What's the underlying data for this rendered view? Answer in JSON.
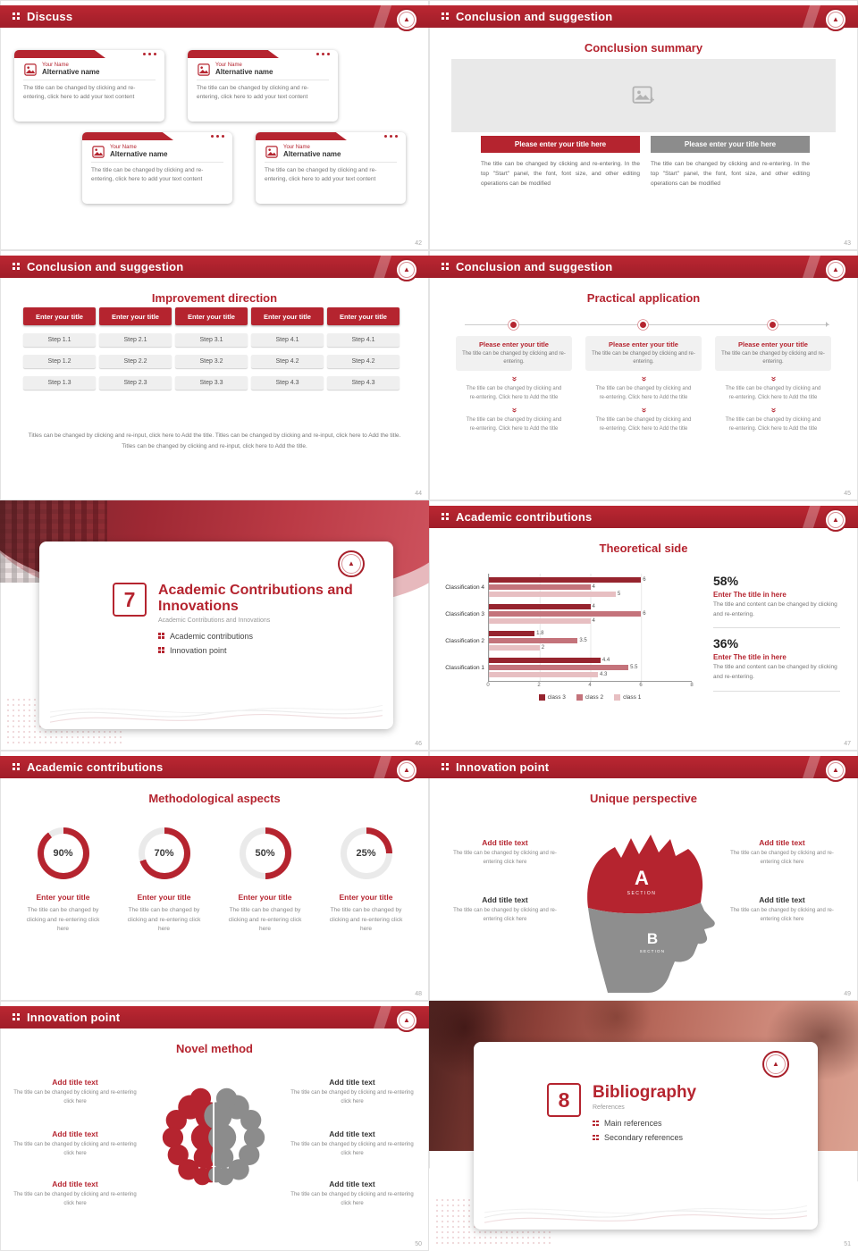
{
  "global": {
    "accent": "#b5242f",
    "accent_dark": "#9e1f2a",
    "gray_button": "#8c8c8c",
    "placeholder_gray": "#e9e9e9"
  },
  "icons": {
    "header_icon": "double-colon-dots-icon",
    "logo": "university-seal-logo",
    "card_icon": "image-icon",
    "placeholder_icon": "image-placeholder-icon",
    "chevron": "double-chevron-down-icon"
  },
  "slides": {
    "s42": {
      "header": "Discuss",
      "page": "42",
      "cards": [
        {
          "name": "Your Name",
          "alt": "Alternative name",
          "body": "The title can be changed by clicking and re-entering, click here to add your text content"
        },
        {
          "name": "Your Name",
          "alt": "Alternative name",
          "body": "The title can be changed by clicking and re-entering, click here to add your text content"
        },
        {
          "name": "Your Name",
          "alt": "Alternative name",
          "body": "The title can be changed by clicking and re-entering, click here to add your text content"
        },
        {
          "name": "Your Name",
          "alt": "Alternative name",
          "body": "The title can be changed by clicking and re-entering, click here to add your text content"
        }
      ]
    },
    "s43": {
      "header": "Conclusion and suggestion",
      "page": "43",
      "title": "Conclusion summary",
      "columns": [
        {
          "button": "Please enter your title here",
          "body": "The title can be changed by clicking and re-entering. In the top \"Start\" panel, the font, font size, and other editing operations can be modified"
        },
        {
          "button": "Please enter your title here",
          "body": "The title can be changed by clicking and re-entering. In the top \"Start\" panel, the font, font size, and other editing operations can be modified"
        }
      ]
    },
    "s44": {
      "header": "Conclusion and suggestion",
      "page": "44",
      "title": "Improvement direction",
      "columns": [
        {
          "button": "Enter your title",
          "steps": [
            "Step 1.1",
            "Step 1.2",
            "Step 1.3"
          ]
        },
        {
          "button": "Enter your title",
          "steps": [
            "Step 2.1",
            "Step 2.2",
            "Step 2.3"
          ]
        },
        {
          "button": "Enter your title",
          "steps": [
            "Step 3.1",
            "Step 3.2",
            "Step 3.3"
          ]
        },
        {
          "button": "Enter your title",
          "steps": [
            "Step 4.1",
            "Step 4.2",
            "Step 4.3"
          ]
        },
        {
          "button": "Enter your title",
          "steps": [
            "Step 4.1",
            "Step 4.2",
            "Step 4.3"
          ]
        }
      ],
      "footer": "Titles can be changed by clicking and re-input, click here to Add the title. Titles can be changed by clicking and re-input, click here to Add the title. Titles can be changed by clicking and re-input, click here to Add the title."
    },
    "s45": {
      "header": "Conclusion and suggestion",
      "page": "45",
      "title": "Practical application",
      "columns": [
        {
          "title": "Please enter your title",
          "subtitle": "The title can be changed by clicking and re-entering.",
          "mid": "The title can be changed by clicking and re-entering. Click here to Add the title",
          "bottom": "The title can be changed by clicking and re-entering. Click here to Add the title"
        },
        {
          "title": "Please enter your title",
          "subtitle": "The title can be changed by clicking and re-entering.",
          "mid": "The title can be changed by clicking and re-entering. Click here to Add the title",
          "bottom": "The title can be changed by clicking and re-entering. Click here to Add the title"
        },
        {
          "title": "Please enter your title",
          "subtitle": "The title can be changed by clicking and re-entering.",
          "mid": "The title can be changed by clicking and re-entering. Click here to Add the title",
          "bottom": "The title can be changed by clicking and re-entering. Click here to Add the title"
        }
      ]
    },
    "s46": {
      "page": "46",
      "number": "7",
      "title": "Academic Contributions and Innovations",
      "subtitle": "Academic Contributions and Innovations",
      "bullets": [
        "Academic contributions",
        "Innovation point"
      ]
    },
    "s47": {
      "header": "Academic contributions",
      "page": "47",
      "title": "Theoretical side",
      "stats": [
        {
          "pct": "58%",
          "title": "Enter The title in here",
          "body": "The title and content can be changed by clicking and re-entering."
        },
        {
          "pct": "36%",
          "title": "Enter The title in here",
          "body": "The title and content can be changed by clicking and re-entering."
        }
      ]
    },
    "s48": {
      "header": "Academic contributions",
      "page": "48",
      "title": "Methodological aspects",
      "donuts": [
        {
          "value": 90,
          "label": "90%",
          "title": "Enter your title",
          "body": "The title can be changed by clicking and re-entering click here"
        },
        {
          "value": 70,
          "label": "70%",
          "title": "Enter your title",
          "body": "The title can be changed by clicking and re-entering click here"
        },
        {
          "value": 50,
          "label": "50%",
          "title": "Enter your title",
          "body": "The title can be changed by clicking and re-entering click here"
        },
        {
          "value": 25,
          "label": "25%",
          "title": "Enter your title",
          "body": "The title can be changed by clicking and re-entering click here"
        }
      ]
    },
    "s49": {
      "header": "Innovation point",
      "page": "49",
      "title": "Unique perspective",
      "sectionA": "A",
      "sectionB": "B",
      "sectionLabel": "SECTION",
      "items": [
        {
          "title": "Add title text",
          "body": "The title can be changed by clicking and re-entering click here"
        },
        {
          "title": "Add title text",
          "body": "The title can be changed by clicking and re-entering click here"
        },
        {
          "title": "Add title text",
          "body": "The title can be changed by clicking and re-entering click here"
        },
        {
          "title": "Add title text",
          "body": "The title can be changed by clicking and re-entering click here"
        }
      ]
    },
    "s50": {
      "header": "Innovation point",
      "page": "50",
      "title": "Novel method",
      "items": [
        {
          "title": "Add title text",
          "body": "The title can be changed by clicking and re-entering click here"
        },
        {
          "title": "Add title text",
          "body": "The title can be changed by clicking and re-entering click here"
        },
        {
          "title": "Add title text",
          "body": "The title can be changed by clicking and re-entering click here"
        },
        {
          "title": "Add title text",
          "body": "The title can be changed by clicking and re-entering click here"
        },
        {
          "title": "Add title text",
          "body": "The title can be changed by clicking and re-entering click here"
        },
        {
          "title": "Add title text",
          "body": "The title can be changed by clicking and re-entering click here"
        }
      ]
    },
    "s51": {
      "page": "51",
      "number": "8",
      "title": "Bibliography",
      "subtitle": "References",
      "bullets": [
        "Main references",
        "Secondary references"
      ]
    }
  },
  "chart_data": {
    "type": "bar",
    "orientation": "horizontal",
    "title": "Theoretical side",
    "categories": [
      "Classification 4",
      "Classification 3",
      "Classification 2",
      "Classification 1"
    ],
    "series": [
      {
        "name": "class 3",
        "color": "#96242e",
        "values": [
          6,
          4,
          1.8,
          4.4
        ]
      },
      {
        "name": "class 2",
        "color": "#c4737b",
        "values": [
          4,
          6,
          3.5,
          5.5
        ]
      },
      {
        "name": "class 1",
        "color": "#e7bfc2",
        "values": [
          5,
          4,
          2,
          4.3
        ]
      }
    ],
    "xlim": [
      0,
      8
    ],
    "xticks": [
      0,
      2,
      4,
      6,
      8
    ],
    "grid": true,
    "legend_position": "bottom"
  }
}
